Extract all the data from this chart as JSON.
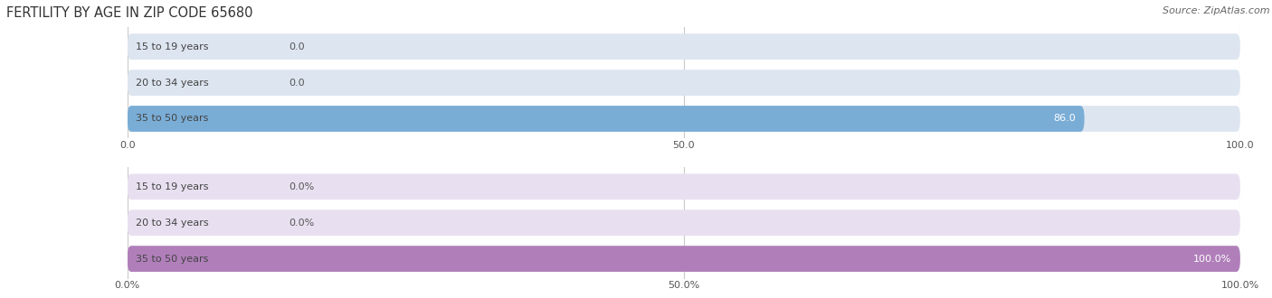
{
  "title": "FERTILITY BY AGE IN ZIP CODE 65680",
  "source_text": "Source: ZipAtlas.com",
  "top_chart": {
    "categories": [
      "15 to 19 years",
      "20 to 34 years",
      "35 to 50 years"
    ],
    "values": [
      0.0,
      0.0,
      86.0
    ],
    "xlim": [
      0,
      100
    ],
    "xticks": [
      0.0,
      50.0,
      100.0
    ],
    "xtick_labels": [
      "0.0",
      "50.0",
      "100.0"
    ],
    "bar_color": "#7aadd6",
    "bar_bg_color": "#dde5f0",
    "value_labels": [
      "0.0",
      "0.0",
      "86.0"
    ]
  },
  "bottom_chart": {
    "categories": [
      "15 to 19 years",
      "20 to 34 years",
      "35 to 50 years"
    ],
    "values": [
      0.0,
      0.0,
      100.0
    ],
    "xlim": [
      0,
      100
    ],
    "xticks": [
      0.0,
      50.0,
      100.0
    ],
    "xtick_labels": [
      "0.0%",
      "50.0%",
      "100.0%"
    ],
    "bar_color": "#b07fba",
    "bar_bg_color": "#e8e0f0",
    "value_labels": [
      "0.0%",
      "0.0%",
      "100.0%"
    ]
  },
  "fig_bg_color": "#ffffff",
  "bar_height": 0.72,
  "label_fontsize": 8.0,
  "tick_fontsize": 8.0,
  "title_fontsize": 10.5,
  "source_fontsize": 8.0,
  "category_fontsize": 8.0,
  "grid_color": "#c8c8c8",
  "category_text_color": "#444444",
  "value_text_color_inside": "#ffffff",
  "value_text_color_outside": "#555555"
}
